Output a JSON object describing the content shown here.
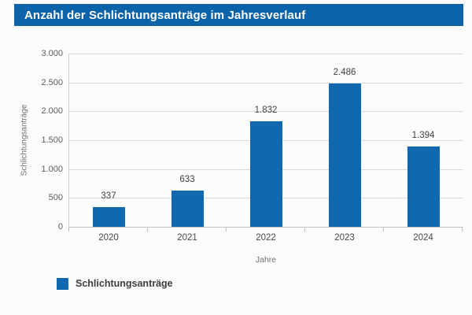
{
  "title_bar": {
    "text": "Anzahl der Schlichtungsanträge im Jahresverlauf",
    "bg_color": "#0c63a9",
    "text_color": "#ffffff"
  },
  "chart_data": {
    "type": "bar",
    "title": "Anzahl der Schlichtungsanträge im Jahresverlauf",
    "categories": [
      "2020",
      "2021",
      "2022",
      "2023",
      "2024"
    ],
    "values": [
      337,
      633,
      1832,
      2486,
      1394
    ],
    "value_labels": [
      "337",
      "633",
      "1.832",
      "2.486",
      "1.394"
    ],
    "series_name": "Schlichtungsanträge",
    "xlabel": "Jahre",
    "ylabel": "Schlichtungsanträge",
    "ylim": [
      0,
      3000
    ],
    "ytick_values": [
      0,
      500,
      1000,
      1500,
      2000,
      2500,
      3000
    ],
    "ytick_labels": [
      "0",
      "500",
      "1.000",
      "1.500",
      "2.000",
      "2.500",
      "3.000"
    ],
    "grid": true,
    "legend_position": "bottom-left",
    "bar_color": "#0f68b0"
  },
  "legend": {
    "label": "Schlichtungsanträge",
    "swatch_color": "#0f68b0"
  }
}
